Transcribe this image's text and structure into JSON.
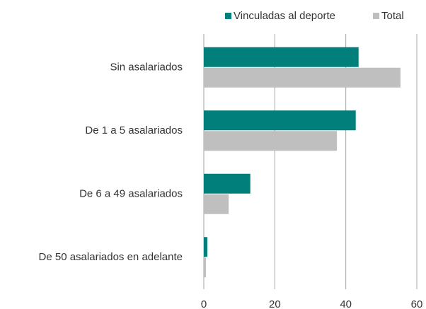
{
  "chart_data": {
    "type": "barh",
    "categories": [
      "Sin asalariados",
      "De 1 a 5 asalariados",
      "De 6 a 49 asalariados",
      "De 50 asalariados en adelante"
    ],
    "series": [
      {
        "name": "Vinculadas al deporte",
        "color": "#007f7b",
        "values": [
          43.6,
          42.8,
          13.1,
          1.0
        ]
      },
      {
        "name": "Total",
        "color": "#bfbfbf",
        "values": [
          55.4,
          37.5,
          7.0,
          0.6
        ]
      }
    ],
    "xlim": [
      0,
      60
    ],
    "xticks": [
      0,
      20,
      40,
      60
    ],
    "grid": true,
    "legend": "top-right"
  }
}
